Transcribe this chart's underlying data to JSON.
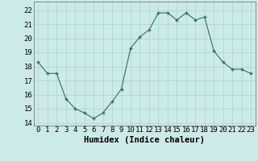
{
  "x": [
    0,
    1,
    2,
    3,
    4,
    5,
    6,
    7,
    8,
    9,
    10,
    11,
    12,
    13,
    14,
    15,
    16,
    17,
    18,
    19,
    20,
    21,
    22,
    23
  ],
  "y": [
    18.3,
    17.5,
    17.5,
    15.7,
    15.0,
    14.7,
    14.3,
    14.7,
    15.5,
    16.4,
    19.3,
    20.1,
    20.6,
    21.8,
    21.8,
    21.3,
    21.8,
    21.3,
    21.5,
    19.1,
    18.3,
    17.8,
    17.8,
    17.5
  ],
  "xlabel": "Humidex (Indice chaleur)",
  "ylim": [
    13.8,
    22.6
  ],
  "xlim": [
    -0.5,
    23.5
  ],
  "yticks": [
    14,
    15,
    16,
    17,
    18,
    19,
    20,
    21,
    22
  ],
  "xticks": [
    0,
    1,
    2,
    3,
    4,
    5,
    6,
    7,
    8,
    9,
    10,
    11,
    12,
    13,
    14,
    15,
    16,
    17,
    18,
    19,
    20,
    21,
    22,
    23
  ],
  "line_color": "#2e6e6e",
  "marker_color": "#2e6e6e",
  "bg_color": "#cceae8",
  "grid_color": "#aad4d0",
  "tick_label_fontsize": 6.5,
  "xlabel_fontsize": 7.5
}
